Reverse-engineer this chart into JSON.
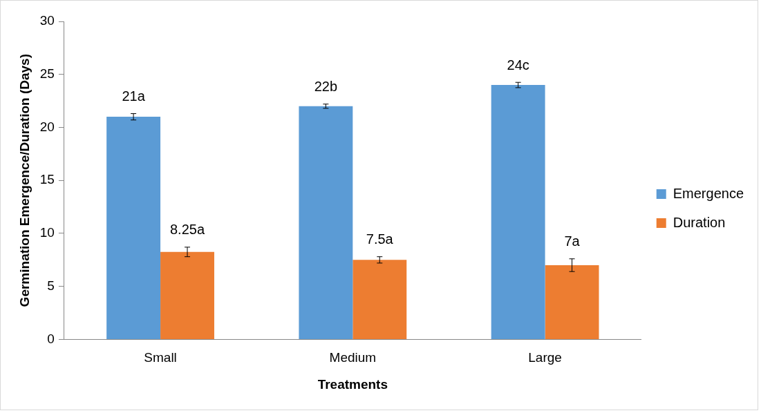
{
  "chart_data": {
    "type": "bar",
    "xlabel": "Treatments",
    "ylabel": "Germination Emergence/Duration (Days)",
    "categories": [
      "Small",
      "Medium",
      "Large"
    ],
    "series": [
      {
        "name": "Emergence",
        "color": "#5b9bd5",
        "values": [
          21,
          22,
          24
        ],
        "errors": [
          0.3,
          0.2,
          0.25
        ],
        "value_labels": [
          "21a",
          "22b",
          "24c"
        ]
      },
      {
        "name": "Duration",
        "color": "#ed7d31",
        "values": [
          8.25,
          7.5,
          7
        ],
        "errors": [
          0.45,
          0.3,
          0.6
        ],
        "value_labels": [
          "8.25a",
          "7.5a",
          "7a"
        ]
      }
    ],
    "ylim": [
      0,
      30
    ],
    "yticks": [
      0,
      5,
      10,
      15,
      20,
      25,
      30
    ],
    "grid": false,
    "legend": "right"
  }
}
